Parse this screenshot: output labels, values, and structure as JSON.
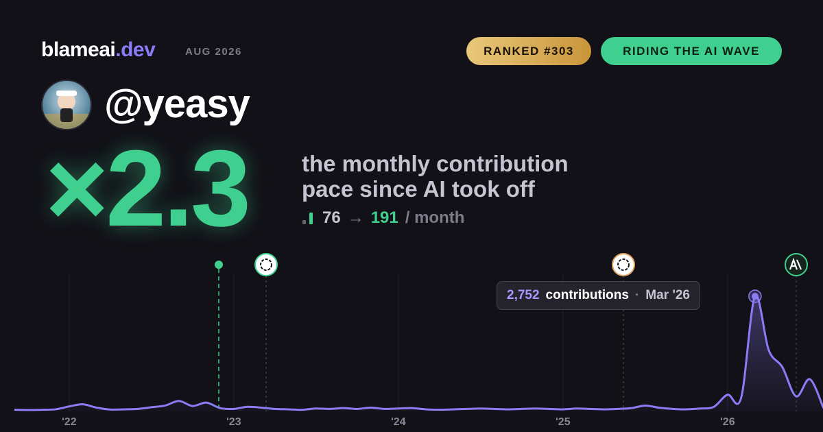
{
  "header": {
    "brand": "blameai",
    "brand_tld": ".dev",
    "date": "AUG 2026",
    "rank_badge": "RANKED #303",
    "status_badge": "RIDING THE AI WAVE"
  },
  "user": {
    "handle": "@yeasy"
  },
  "headline": {
    "multiplier": "×2.3",
    "line1": "the monthly contribution",
    "line2": "pace since AI took off",
    "before": 76,
    "arrow": "→",
    "after": 191,
    "unit": "/ month"
  },
  "chart_data": {
    "type": "line",
    "x": [
      2021.667,
      2021.75,
      2021.833,
      2021.917,
      2022.0,
      2022.083,
      2022.167,
      2022.25,
      2022.333,
      2022.417,
      2022.5,
      2022.583,
      2022.667,
      2022.75,
      2022.833,
      2022.917,
      2023.0,
      2023.083,
      2023.167,
      2023.25,
      2023.333,
      2023.417,
      2023.5,
      2023.583,
      2023.667,
      2023.75,
      2023.833,
      2023.917,
      2024.0,
      2024.083,
      2024.167,
      2024.25,
      2024.333,
      2024.417,
      2024.5,
      2024.583,
      2024.667,
      2024.75,
      2024.833,
      2024.917,
      2025.0,
      2025.083,
      2025.167,
      2025.25,
      2025.333,
      2025.417,
      2025.5,
      2025.583,
      2025.667,
      2025.75,
      2025.833,
      2025.917,
      2026.0,
      2026.083,
      2026.167,
      2026.25,
      2026.333,
      2026.417,
      2026.5,
      2026.583
    ],
    "series": [
      {
        "name": "contributions",
        "color": "#8b7cf6",
        "values": [
          40,
          35,
          40,
          50,
          120,
          170,
          90,
          45,
          50,
          60,
          100,
          140,
          250,
          130,
          210,
          80,
          60,
          110,
          90,
          60,
          50,
          40,
          70,
          60,
          80,
          60,
          90,
          60,
          70,
          80,
          50,
          40,
          50,
          60,
          70,
          60,
          50,
          60,
          70,
          60,
          50,
          70,
          60,
          50,
          60,
          80,
          140,
          90,
          60,
          50,
          70,
          110,
          400,
          330,
          2752,
          1470,
          1060,
          360,
          770,
          80
        ],
        "value_labels": [
          null,
          null,
          null,
          null,
          null,
          null,
          null,
          null,
          null,
          null,
          null,
          null,
          null,
          null,
          null,
          null,
          null,
          null,
          null,
          null,
          null,
          null,
          null,
          null,
          null,
          null,
          null,
          null,
          null,
          null,
          null,
          null,
          null,
          null,
          null,
          null,
          null,
          null,
          null,
          null,
          null,
          null,
          null,
          null,
          null,
          null,
          null,
          null,
          null,
          null,
          null,
          null,
          null,
          null,
          "2,752",
          null,
          null,
          null,
          null,
          null
        ]
      }
    ],
    "tooltip_index": 54,
    "tooltip_unit": "contributions",
    "tooltip_date": "Mar '26",
    "xlim": [
      2021.58,
      2026.58
    ],
    "xticks": [
      {
        "value": 2022,
        "label": "'22"
      },
      {
        "value": 2023,
        "label": "'23"
      },
      {
        "value": 2024,
        "label": "'24"
      },
      {
        "value": 2025,
        "label": "'25"
      },
      {
        "value": 2026,
        "label": "'26"
      }
    ],
    "ylim": [
      0,
      2900
    ],
    "grid": true
  }
}
